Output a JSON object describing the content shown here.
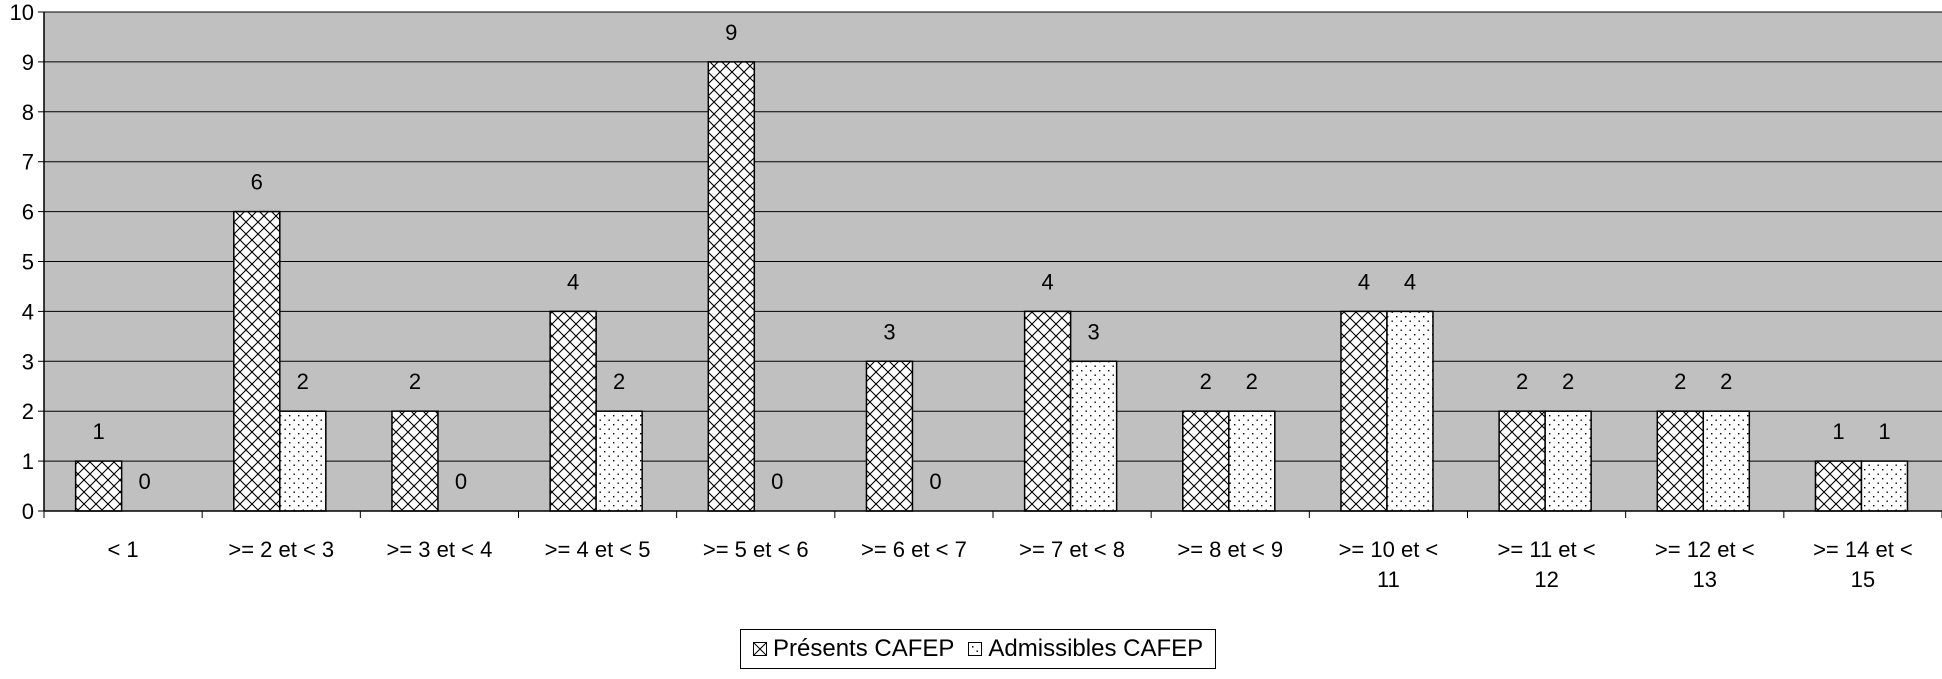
{
  "chart_data": {
    "type": "bar",
    "categories": [
      [
        "< 1"
      ],
      [
        ">= 2 et < 3"
      ],
      [
        ">= 3 et < 4"
      ],
      [
        ">= 4 et < 5"
      ],
      [
        ">= 5 et < 6"
      ],
      [
        ">= 6 et < 7"
      ],
      [
        ">= 7 et < 8"
      ],
      [
        ">= 8 et < 9"
      ],
      [
        ">= 10 et <",
        "11"
      ],
      [
        ">= 11 et <",
        "12"
      ],
      [
        ">= 12 et <",
        "13"
      ],
      [
        ">= 14 et <",
        "15"
      ]
    ],
    "series": [
      {
        "name": "Présents CAFEP",
        "pattern": "crosshatch",
        "values": [
          1,
          6,
          2,
          4,
          9,
          3,
          4,
          2,
          4,
          2,
          2,
          1
        ]
      },
      {
        "name": "Admissibles CAFEP",
        "pattern": "dots",
        "values": [
          0,
          2,
          0,
          2,
          0,
          0,
          3,
          2,
          4,
          2,
          2,
          1
        ]
      }
    ],
    "ylim": [
      0,
      10
    ],
    "yticks": [
      0,
      1,
      2,
      3,
      4,
      5,
      6,
      7,
      8,
      9,
      10
    ],
    "grid": true,
    "legend_position": "bottom-center",
    "colors": {
      "plot_background": "#c0c0c0",
      "bar_fill": "#ffffff",
      "stroke": "#000000"
    }
  }
}
